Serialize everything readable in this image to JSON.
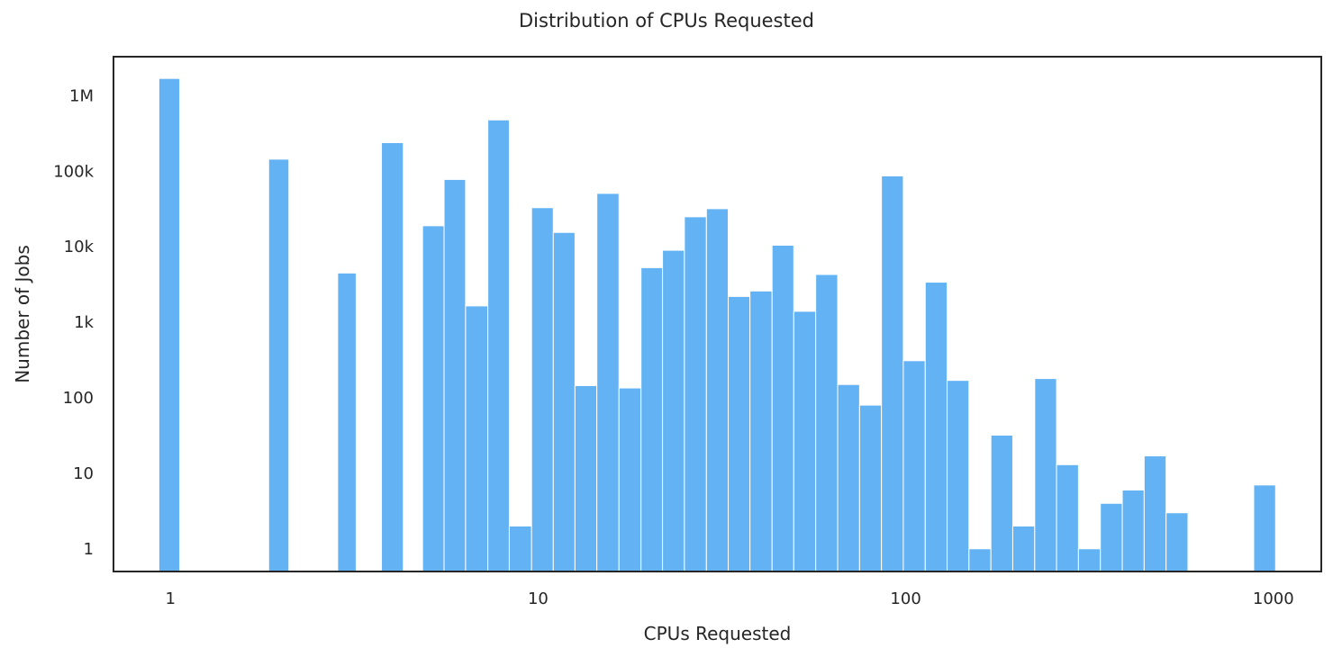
{
  "chart_data": {
    "type": "bar",
    "title": "Distribution of CPUs Requested",
    "xlabel": "CPUs Requested",
    "ylabel": "Number of Jobs",
    "x_scale": "log",
    "y_scale": "log",
    "xlim": [
      0.7,
      1350
    ],
    "ylim": [
      0.5,
      3300000
    ],
    "x_ticks": [
      {
        "value": 1,
        "label": "1"
      },
      {
        "value": 10,
        "label": "10"
      },
      {
        "value": 100,
        "label": "100"
      },
      {
        "value": 1000,
        "label": "1000"
      }
    ],
    "y_ticks": [
      {
        "value": 1,
        "label": "1"
      },
      {
        "value": 10,
        "label": "10"
      },
      {
        "value": 100,
        "label": "100"
      },
      {
        "value": 1000,
        "label": "1k"
      },
      {
        "value": 10000,
        "label": "10k"
      },
      {
        "value": 100000,
        "label": "100k"
      },
      {
        "value": 1000000,
        "label": "1M"
      }
    ],
    "bar_color": "#63b3f4",
    "bar_edge_color": "#ffffff",
    "grid": false,
    "bins": [
      {
        "x0": 0.93,
        "x1": 1.06,
        "count": 1700000
      },
      {
        "x0": 1.85,
        "x1": 2.1,
        "count": 145000
      },
      {
        "x0": 2.85,
        "x1": 3.2,
        "count": 4500
      },
      {
        "x0": 3.75,
        "x1": 4.3,
        "count": 240000
      },
      {
        "x0": 4.85,
        "x1": 5.55,
        "count": 19000
      },
      {
        "x0": 5.55,
        "x1": 6.35,
        "count": 78000
      },
      {
        "x0": 6.35,
        "x1": 7.3,
        "count": 1650
      },
      {
        "x0": 7.3,
        "x1": 8.35,
        "count": 480000
      },
      {
        "x0": 8.35,
        "x1": 9.6,
        "count": 2
      },
      {
        "x0": 9.6,
        "x1": 11.0,
        "count": 33000
      },
      {
        "x0": 11.0,
        "x1": 12.6,
        "count": 15500
      },
      {
        "x0": 12.6,
        "x1": 14.45,
        "count": 145
      },
      {
        "x0": 14.45,
        "x1": 16.6,
        "count": 51000
      },
      {
        "x0": 16.6,
        "x1": 19.05,
        "count": 135
      },
      {
        "x0": 19.05,
        "x1": 21.8,
        "count": 5300
      },
      {
        "x0": 21.8,
        "x1": 25.0,
        "count": 9000
      },
      {
        "x0": 25.0,
        "x1": 28.7,
        "count": 25000
      },
      {
        "x0": 28.7,
        "x1": 32.9,
        "count": 32000
      },
      {
        "x0": 32.9,
        "x1": 37.7,
        "count": 2200
      },
      {
        "x0": 37.7,
        "x1": 43.3,
        "count": 2600
      },
      {
        "x0": 43.3,
        "x1": 49.6,
        "count": 10500
      },
      {
        "x0": 49.6,
        "x1": 56.9,
        "count": 1400
      },
      {
        "x0": 56.9,
        "x1": 65.3,
        "count": 4300
      },
      {
        "x0": 65.3,
        "x1": 74.9,
        "count": 150
      },
      {
        "x0": 74.9,
        "x1": 85.9,
        "count": 80
      },
      {
        "x0": 85.9,
        "x1": 98.5,
        "count": 87000
      },
      {
        "x0": 98.5,
        "x1": 113.0,
        "count": 310
      },
      {
        "x0": 113.0,
        "x1": 129.6,
        "count": 3400
      },
      {
        "x0": 129.6,
        "x1": 148.6,
        "count": 170
      },
      {
        "x0": 148.6,
        "x1": 170.5,
        "count": 1
      },
      {
        "x0": 170.5,
        "x1": 195.5,
        "count": 32
      },
      {
        "x0": 195.5,
        "x1": 224.3,
        "count": 2
      },
      {
        "x0": 224.3,
        "x1": 257.2,
        "count": 180
      },
      {
        "x0": 257.2,
        "x1": 295.0,
        "count": 13
      },
      {
        "x0": 295.0,
        "x1": 338.4,
        "count": 1
      },
      {
        "x0": 338.4,
        "x1": 388.2,
        "count": 4
      },
      {
        "x0": 388.2,
        "x1": 445.2,
        "count": 6
      },
      {
        "x0": 445.2,
        "x1": 510.7,
        "count": 17
      },
      {
        "x0": 510.7,
        "x1": 585.8,
        "count": 3
      },
      {
        "x0": 884.0,
        "x1": 1014.0,
        "count": 7
      }
    ]
  }
}
